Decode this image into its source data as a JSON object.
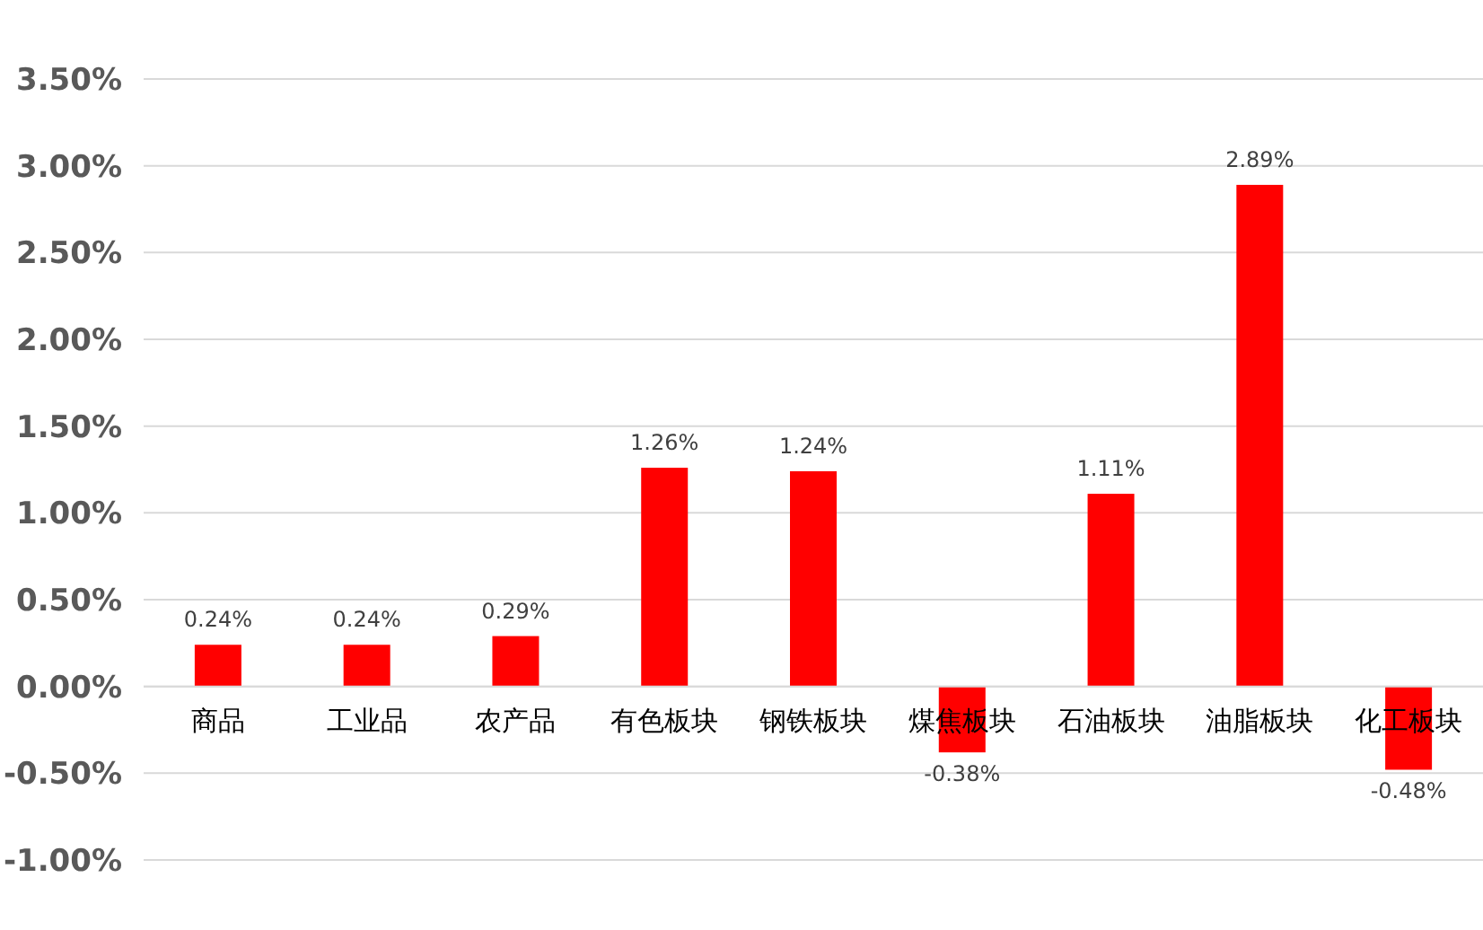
{
  "chart_data": {
    "type": "bar",
    "categories": [
      "商品",
      "工业品",
      "农产品",
      "有色板块",
      "钢铁板块",
      "煤焦板块",
      "石油板块",
      "油脂板块",
      "化工板块"
    ],
    "values": [
      0.24,
      0.24,
      0.29,
      1.26,
      1.24,
      -0.38,
      1.11,
      2.89,
      -0.48
    ],
    "value_labels": [
      "0.24%",
      "0.24%",
      "0.29%",
      "1.26%",
      "1.24%",
      "-0.38%",
      "1.11%",
      "2.89%",
      "-0.48%"
    ],
    "color": "#ff0000",
    "ylim": [
      -1,
      3.5
    ],
    "yticks": [
      {
        "value": -1,
        "label": "-1.00%"
      },
      {
        "value": -0.5,
        "label": "-0.50%"
      },
      {
        "value": 0,
        "label": "0.00%"
      },
      {
        "value": 0.5,
        "label": "0.50%"
      },
      {
        "value": 1,
        "label": "1.00%"
      },
      {
        "value": 1.5,
        "label": "1.50%"
      },
      {
        "value": 2,
        "label": "2.00%"
      },
      {
        "value": 2.5,
        "label": "2.50%"
      },
      {
        "value": 3,
        "label": "3.00%"
      },
      {
        "value": 3.5,
        "label": "3.50%"
      }
    ],
    "grid": "y"
  }
}
